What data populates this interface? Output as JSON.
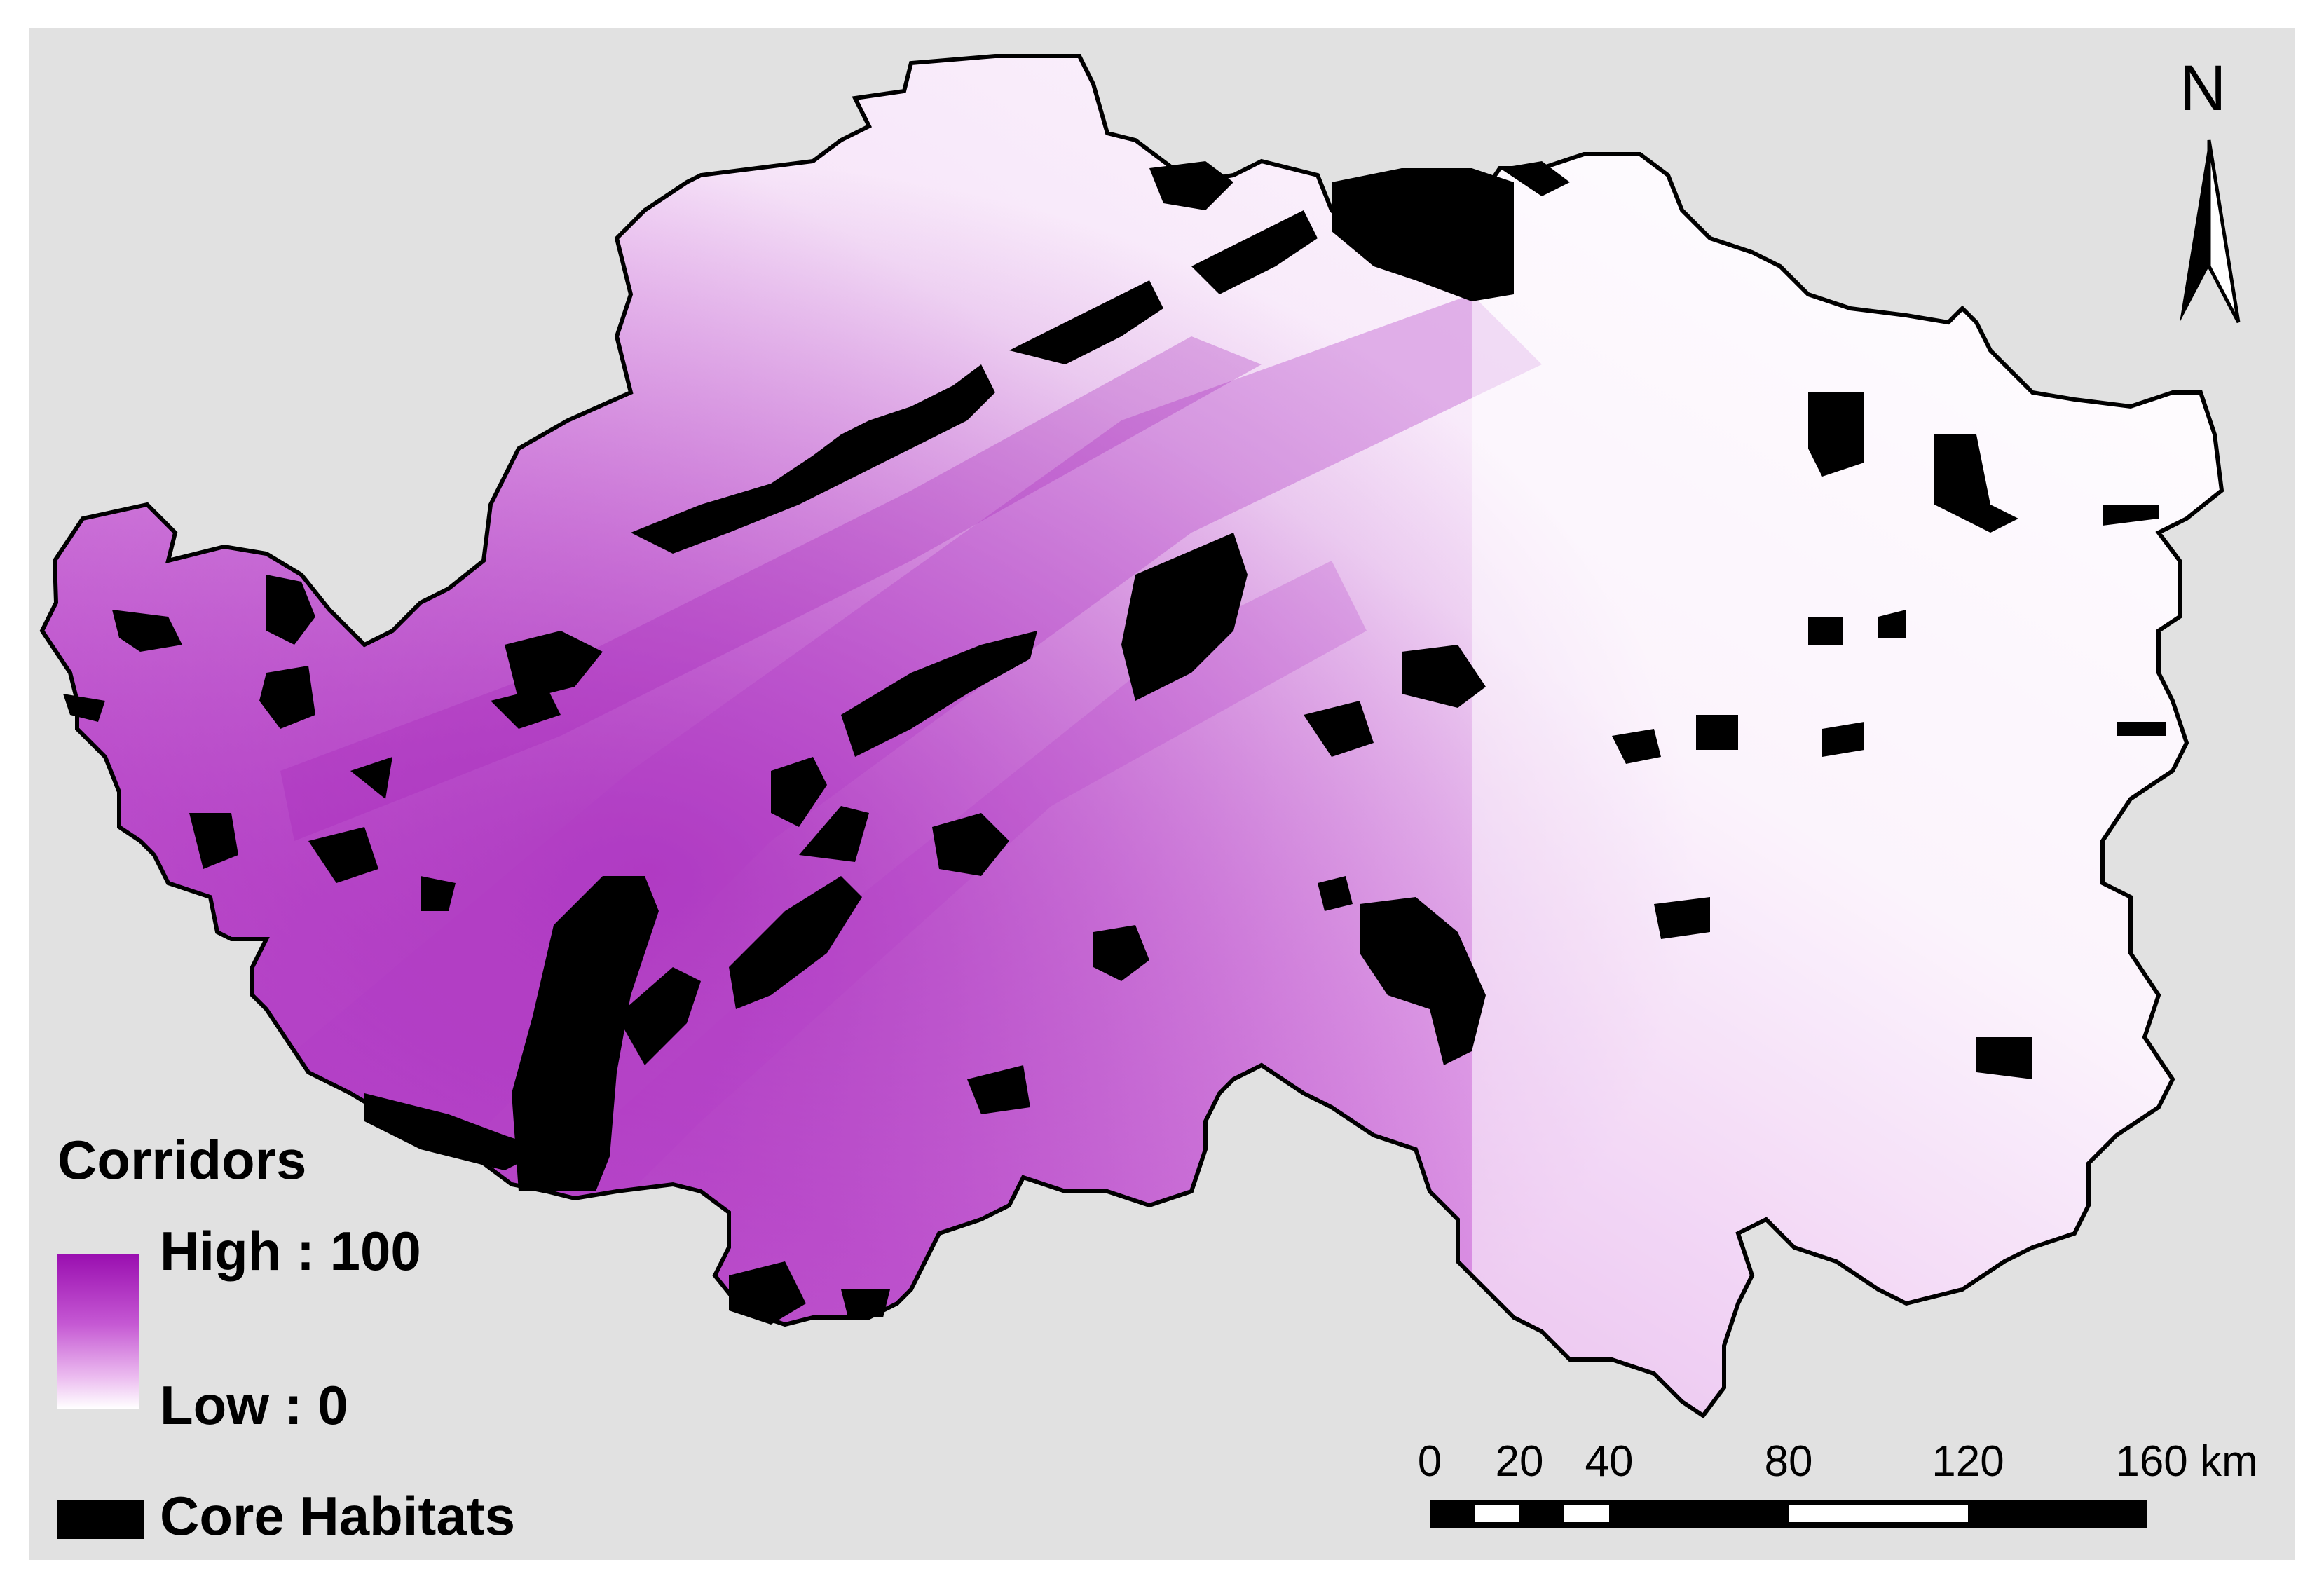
{
  "legend": {
    "title": "Corridors",
    "high_label": "High : 100",
    "low_label": "Low : 0",
    "core_label": "Core Habitats",
    "colors": {
      "high": "#9a0fb0",
      "low": "#ffffff",
      "core": "#000000",
      "background": "#e1e1e1"
    }
  },
  "north_arrow": {
    "letter": "N",
    "icon": "north-arrow-icon"
  },
  "scale_bar": {
    "labels": [
      "0",
      "20",
      "40",
      "80",
      "120",
      "160 km"
    ]
  }
}
